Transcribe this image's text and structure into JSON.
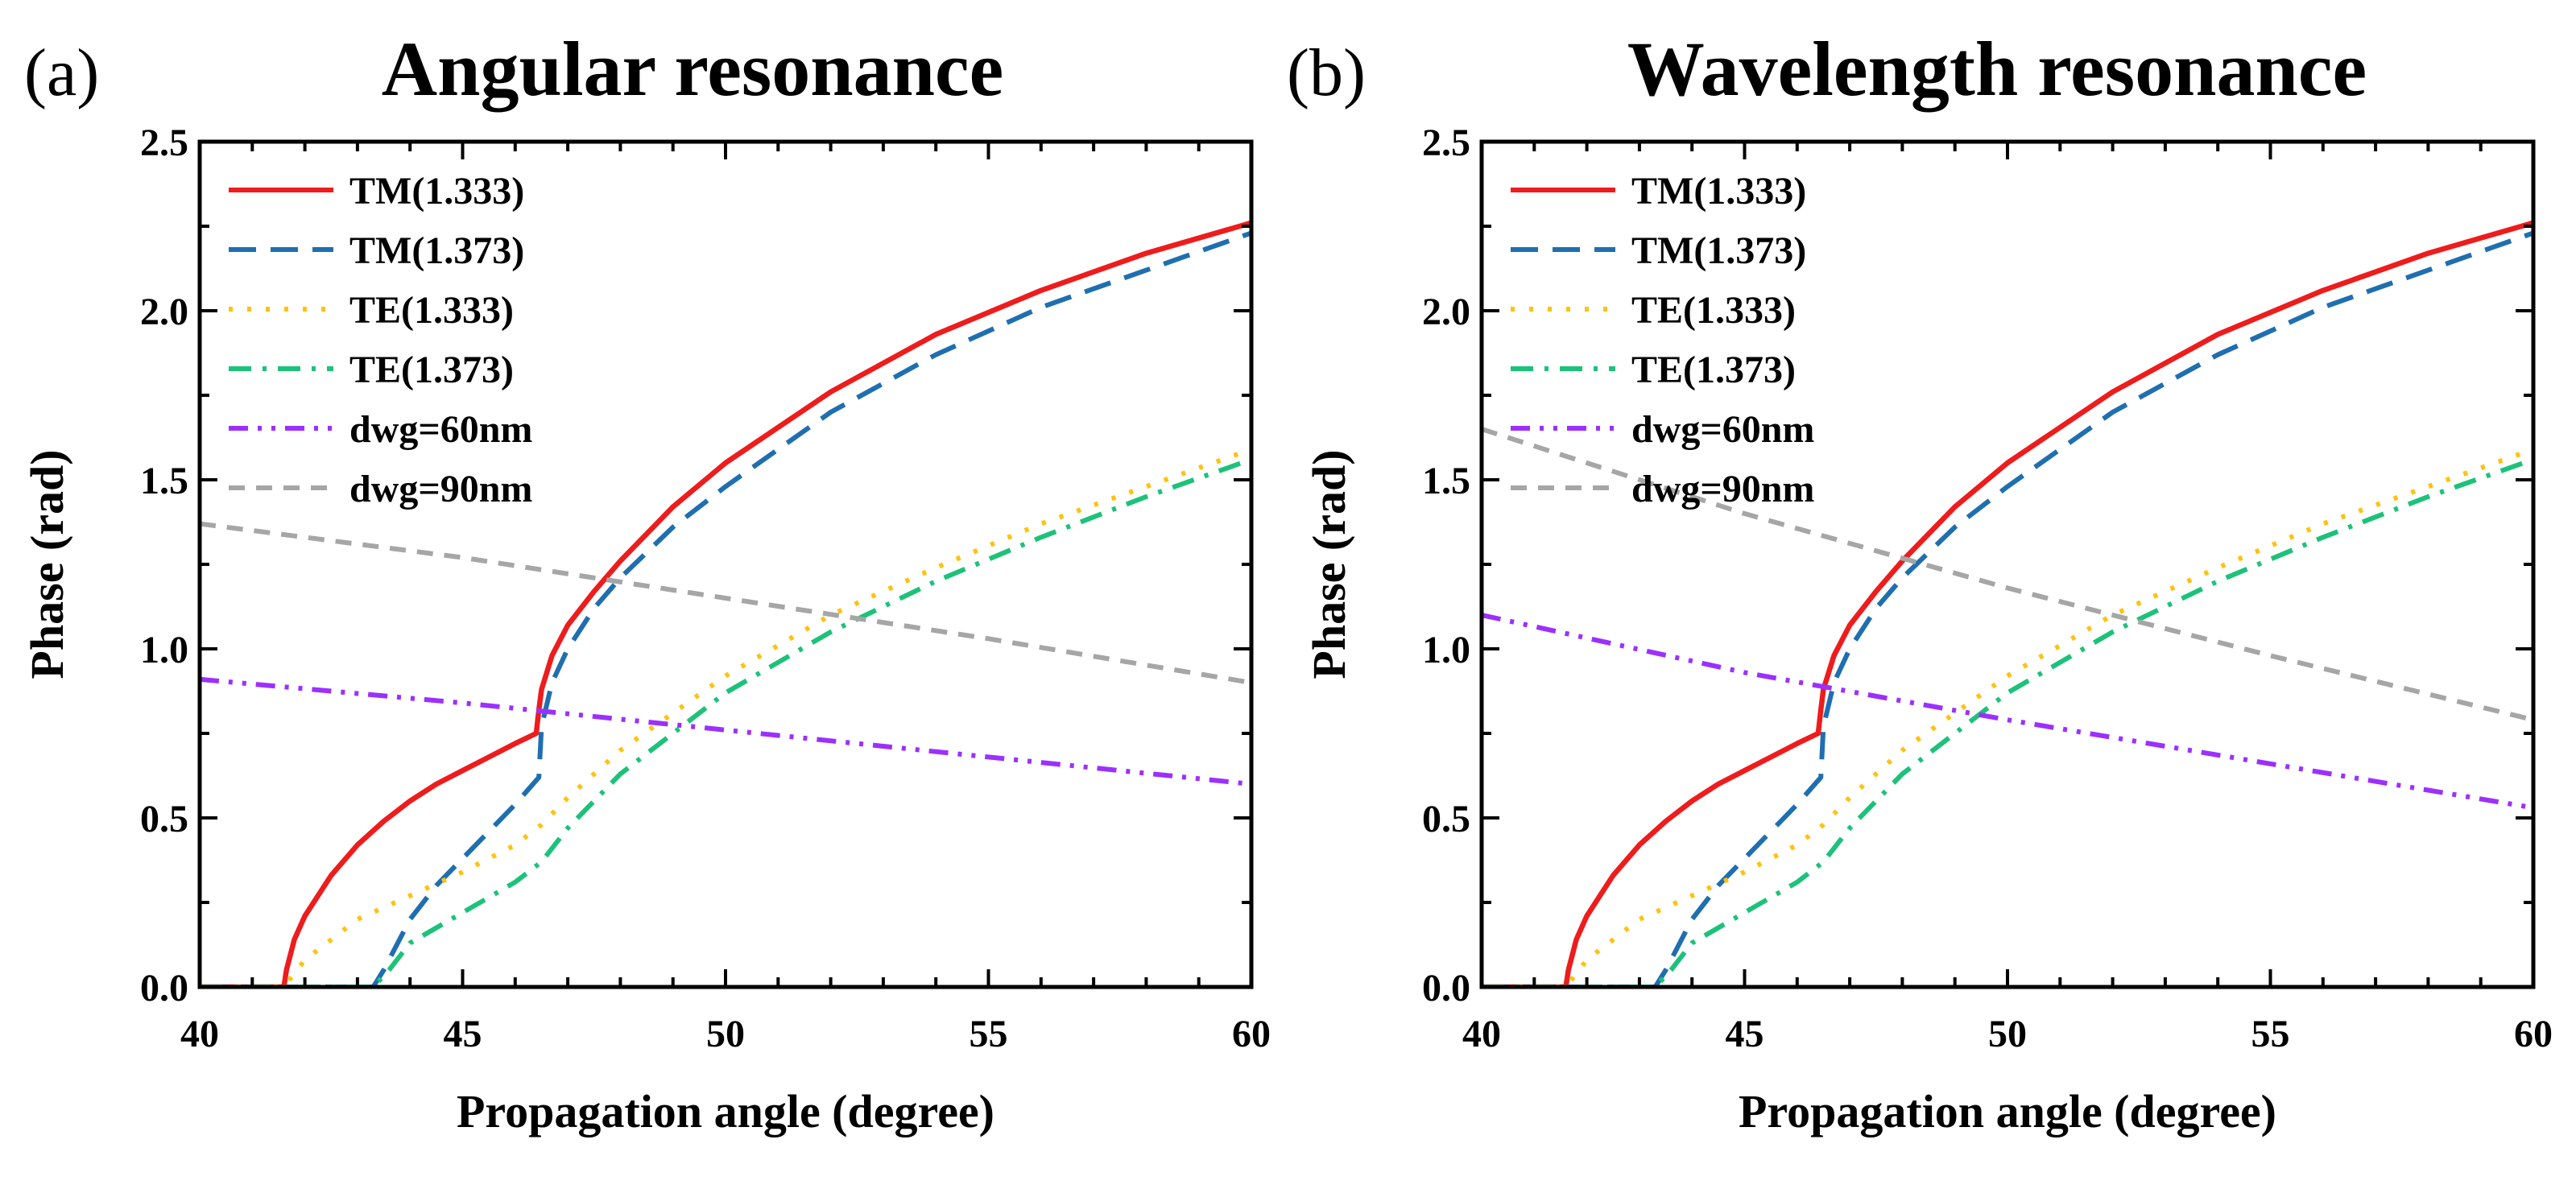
{
  "chart_data": [
    {
      "type": "line",
      "panel_label": "(a)",
      "title": "Angular resonance",
      "xlabel": "Propagation angle (degree)",
      "ylabel": "Phase (rad)",
      "xlim": [
        40,
        60
      ],
      "ylim": [
        0,
        2.5
      ],
      "xticks": [
        40,
        45,
        50,
        55,
        60
      ],
      "yticks": [
        0.0,
        0.5,
        1.0,
        1.5,
        2.0,
        2.5
      ],
      "xtick_labels": [
        "40",
        "45",
        "50",
        "55",
        "60"
      ],
      "ytick_labels": [
        "0.0",
        "0.5",
        "1.0",
        "1.5",
        "2.0",
        "2.5"
      ],
      "grid": false,
      "legend_position": "top-left",
      "series": [
        {
          "name": "TM(1.333)",
          "color": "#ee1c1c",
          "dash": "solid",
          "x": [
            40,
            41.6,
            41.65,
            41.8,
            42,
            42.5,
            43,
            43.5,
            44,
            44.5,
            45,
            45.5,
            46,
            46.4,
            46.45,
            46.5,
            46.7,
            47,
            47.5,
            48,
            49,
            50,
            52,
            54,
            56,
            58,
            60
          ],
          "y": [
            0,
            0,
            0.05,
            0.14,
            0.21,
            0.33,
            0.42,
            0.49,
            0.55,
            0.6,
            0.64,
            0.68,
            0.72,
            0.75,
            0.82,
            0.88,
            0.98,
            1.07,
            1.17,
            1.26,
            1.42,
            1.55,
            1.76,
            1.93,
            2.06,
            2.17,
            2.26
          ]
        },
        {
          "name": "TM(1.373)",
          "color": "#1f6fb0",
          "dash": "dash",
          "x": [
            40,
            43.3,
            43.5,
            44,
            44.5,
            45,
            45.5,
            46,
            46.45,
            46.5,
            46.7,
            47,
            47.5,
            48,
            49,
            50,
            52,
            54,
            56,
            58,
            60
          ],
          "y": [
            0,
            0,
            0.05,
            0.2,
            0.3,
            0.38,
            0.46,
            0.54,
            0.62,
            0.77,
            0.9,
            1.0,
            1.12,
            1.21,
            1.36,
            1.48,
            1.7,
            1.87,
            2.01,
            2.12,
            2.23
          ]
        },
        {
          "name": "TE(1.333)",
          "color": "#ffc20e",
          "dash": "dot",
          "x": [
            40,
            41.6,
            42,
            43,
            44,
            45,
            46,
            46.5,
            47,
            48,
            50,
            52,
            54,
            56,
            58,
            60
          ],
          "y": [
            0,
            0,
            0.08,
            0.2,
            0.27,
            0.34,
            0.42,
            0.48,
            0.56,
            0.7,
            0.92,
            1.1,
            1.24,
            1.37,
            1.48,
            1.59
          ]
        },
        {
          "name": "TE(1.373)",
          "color": "#1dc27a",
          "dash": "dashdot",
          "x": [
            40,
            43.3,
            43.6,
            44,
            45,
            46,
            46.5,
            47,
            48,
            50,
            52,
            54,
            56,
            58,
            60
          ],
          "y": [
            0,
            0,
            0.05,
            0.13,
            0.22,
            0.31,
            0.37,
            0.47,
            0.63,
            0.87,
            1.05,
            1.2,
            1.33,
            1.45,
            1.56
          ]
        },
        {
          "name": "dwg=60nm",
          "color": "#9b30ff",
          "dash": "dashdotdot",
          "x": [
            40,
            45,
            50,
            55,
            60
          ],
          "y": [
            0.91,
            0.84,
            0.76,
            0.68,
            0.6
          ]
        },
        {
          "name": "dwg=90nm",
          "color": "#a6a6a6",
          "dash": "shortdash",
          "x": [
            40,
            45,
            50,
            55,
            60
          ],
          "y": [
            1.37,
            1.27,
            1.15,
            1.03,
            0.9
          ]
        }
      ]
    },
    {
      "type": "line",
      "panel_label": "(b)",
      "title": "Wavelength resonance",
      "xlabel": "Propagation angle (degree)",
      "ylabel": "Phase (rad)",
      "xlim": [
        40,
        60
      ],
      "ylim": [
        0,
        2.5
      ],
      "xticks": [
        40,
        45,
        50,
        55,
        60
      ],
      "yticks": [
        0.0,
        0.5,
        1.0,
        1.5,
        2.0,
        2.5
      ],
      "xtick_labels": [
        "40",
        "45",
        "50",
        "55",
        "60"
      ],
      "ytick_labels": [
        "0.0",
        "0.5",
        "1.0",
        "1.5",
        "2.0",
        "2.5"
      ],
      "grid": false,
      "legend_position": "top-left",
      "series": [
        {
          "name": "TM(1.333)",
          "color": "#ee1c1c",
          "dash": "solid",
          "x": [
            40,
            41.6,
            41.65,
            41.8,
            42,
            42.5,
            43,
            43.5,
            44,
            44.5,
            45,
            45.5,
            46,
            46.4,
            46.45,
            46.5,
            46.7,
            47,
            47.5,
            48,
            49,
            50,
            52,
            54,
            56,
            58,
            60
          ],
          "y": [
            0,
            0,
            0.05,
            0.14,
            0.21,
            0.33,
            0.42,
            0.49,
            0.55,
            0.6,
            0.64,
            0.68,
            0.72,
            0.75,
            0.82,
            0.88,
            0.98,
            1.07,
            1.17,
            1.26,
            1.42,
            1.55,
            1.76,
            1.93,
            2.06,
            2.17,
            2.26
          ]
        },
        {
          "name": "TM(1.373)",
          "color": "#1f6fb0",
          "dash": "dash",
          "x": [
            40,
            43.3,
            43.5,
            44,
            44.5,
            45,
            45.5,
            46,
            46.45,
            46.5,
            46.7,
            47,
            47.5,
            48,
            49,
            50,
            52,
            54,
            56,
            58,
            60
          ],
          "y": [
            0,
            0,
            0.05,
            0.2,
            0.3,
            0.38,
            0.46,
            0.54,
            0.62,
            0.77,
            0.9,
            1.0,
            1.12,
            1.21,
            1.36,
            1.48,
            1.7,
            1.87,
            2.01,
            2.12,
            2.23
          ]
        },
        {
          "name": "TE(1.333)",
          "color": "#ffc20e",
          "dash": "dot",
          "x": [
            40,
            41.6,
            42,
            43,
            44,
            45,
            46,
            46.5,
            47,
            48,
            50,
            52,
            54,
            56,
            58,
            60
          ],
          "y": [
            0,
            0,
            0.08,
            0.2,
            0.27,
            0.34,
            0.42,
            0.48,
            0.56,
            0.7,
            0.92,
            1.1,
            1.24,
            1.37,
            1.48,
            1.59
          ]
        },
        {
          "name": "TE(1.373)",
          "color": "#1dc27a",
          "dash": "dashdot",
          "x": [
            40,
            43.3,
            43.6,
            44,
            45,
            46,
            46.5,
            47,
            48,
            50,
            52,
            54,
            56,
            58,
            60
          ],
          "y": [
            0,
            0,
            0.05,
            0.13,
            0.22,
            0.31,
            0.37,
            0.47,
            0.63,
            0.87,
            1.05,
            1.2,
            1.33,
            1.45,
            1.56
          ]
        },
        {
          "name": "dwg=60nm",
          "color": "#9b30ff",
          "dash": "dashdotdot",
          "x": [
            40,
            45,
            50,
            55,
            60
          ],
          "y": [
            1.1,
            0.93,
            0.79,
            0.66,
            0.53
          ]
        },
        {
          "name": "dwg=90nm",
          "color": "#a6a6a6",
          "dash": "shortdash",
          "x": [
            40,
            45,
            50,
            55,
            60
          ],
          "y": [
            1.65,
            1.4,
            1.18,
            0.98,
            0.79
          ]
        }
      ]
    }
  ]
}
